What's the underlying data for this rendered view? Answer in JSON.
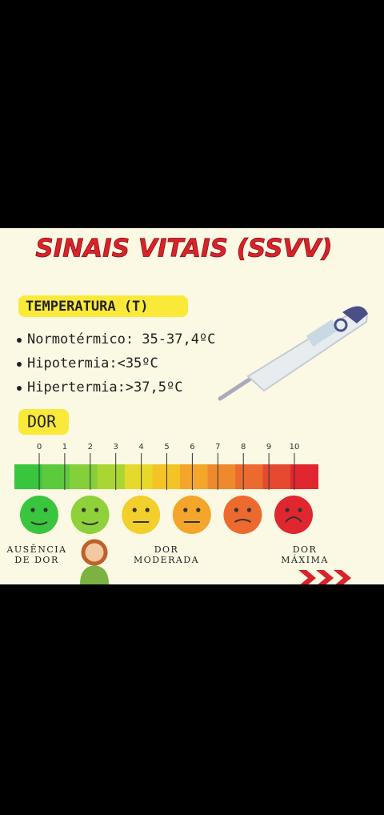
{
  "title": "SINAIS VITAIS (SSVV)",
  "temperature": {
    "label": "TEMPERATURA (T)",
    "items": [
      "Normotérmico: 35-37,4ºC",
      "Hipotermia:<35ºC",
      "Hipertermia:>37,5ºC"
    ]
  },
  "pain": {
    "label": "DOR",
    "scale": [
      0,
      1,
      2,
      3,
      4,
      5,
      6,
      7,
      8,
      9,
      10
    ],
    "levels": [
      [
        "AUSÊNCIA",
        "DE DOR"
      ],
      [
        "DOR",
        "MODERADA"
      ],
      [
        "DOR",
        "MÁXIMA"
      ]
    ]
  }
}
